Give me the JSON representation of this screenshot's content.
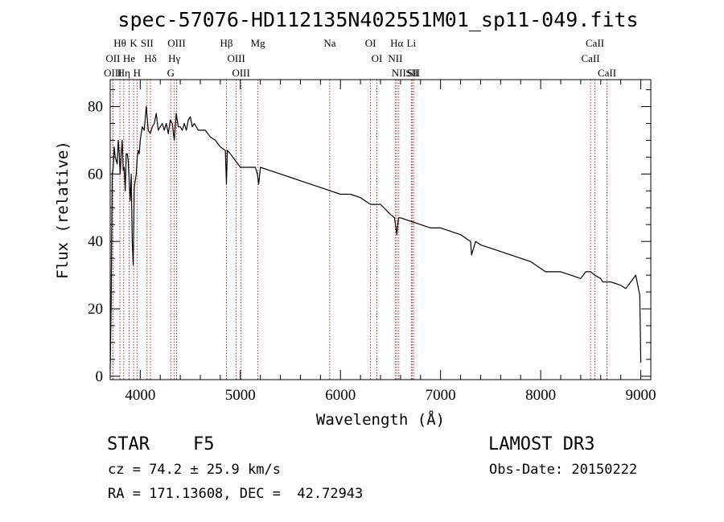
{
  "chart_data": {
    "type": "line",
    "title": "spec-57076-HD112135N402551M01_sp11-049.fits",
    "xlabel": "Wavelength (Å)",
    "ylabel": "Flux (relative)",
    "xlim": [
      3700,
      9100
    ],
    "ylim": [
      -1,
      88
    ],
    "xticks": [
      4000,
      5000,
      6000,
      7000,
      8000,
      9000
    ],
    "yticks": [
      0,
      20,
      40,
      60,
      80
    ],
    "series": [
      {
        "name": "flux",
        "x": [
          3700,
          3710,
          3720,
          3730,
          3740,
          3750,
          3760,
          3770,
          3780,
          3790,
          3800,
          3810,
          3820,
          3830,
          3840,
          3850,
          3860,
          3870,
          3880,
          3890,
          3900,
          3910,
          3920,
          3930,
          3940,
          3950,
          3960,
          3970,
          3980,
          3990,
          4000,
          4020,
          4040,
          4060,
          4080,
          4100,
          4120,
          4140,
          4160,
          4180,
          4200,
          4220,
          4240,
          4260,
          4280,
          4300,
          4320,
          4340,
          4360,
          4380,
          4400,
          4420,
          4440,
          4460,
          4480,
          4500,
          4520,
          4540,
          4560,
          4580,
          4600,
          4650,
          4700,
          4750,
          4800,
          4850,
          4861,
          4870,
          4900,
          4950,
          5000,
          5050,
          5100,
          5150,
          5170,
          5183,
          5200,
          5300,
          5400,
          5500,
          5600,
          5700,
          5800,
          5900,
          6000,
          6100,
          6200,
          6300,
          6400,
          6500,
          6540,
          6563,
          6580,
          6600,
          6700,
          6800,
          6900,
          7000,
          7100,
          7200,
          7250,
          7300,
          7310,
          7350,
          7400,
          7500,
          7600,
          7700,
          7800,
          7900,
          8000,
          8050,
          8100,
          8200,
          8300,
          8400,
          8450,
          8500,
          8540,
          8600,
          8620,
          8662,
          8700,
          8800,
          8850,
          8900,
          8950,
          8990,
          9000
        ],
        "values": [
          2,
          22,
          60,
          62,
          68,
          65,
          64,
          63,
          70,
          66,
          60,
          66,
          70,
          61,
          62,
          55,
          66,
          66,
          64,
          58,
          52,
          60,
          40,
          33,
          56,
          58,
          60,
          65,
          67,
          66,
          70,
          74,
          73,
          80,
          73,
          72,
          74,
          75,
          78,
          73,
          74,
          75,
          73,
          75,
          72,
          76,
          75,
          70,
          78,
          74,
          74,
          73,
          75,
          73,
          76,
          77,
          74,
          75,
          74,
          73,
          73,
          73,
          71,
          70,
          68,
          67,
          57,
          67,
          66,
          64,
          62,
          62,
          62,
          62,
          60,
          57,
          62,
          61,
          60,
          59,
          58,
          57,
          56,
          55,
          54,
          54,
          53,
          51,
          51,
          48,
          47,
          42,
          47,
          47,
          46,
          45,
          44,
          44,
          43,
          42,
          41,
          40,
          36,
          40,
          39,
          38,
          37,
          36,
          35,
          34,
          32,
          31,
          31,
          31,
          30,
          29,
          31,
          31,
          30,
          29,
          28,
          28,
          28,
          27,
          26,
          28,
          30,
          24,
          4
        ]
      }
    ],
    "spectral_lines": [
      {
        "label": "Hθ",
        "wavelength": 3797
      },
      {
        "label": "OII",
        "wavelength": 3727
      },
      {
        "label": "OIII",
        "wavelength": 3727
      },
      {
        "label": "He",
        "wavelength": 3889
      },
      {
        "label": "Hη",
        "wavelength": 3835
      },
      {
        "label": "K",
        "wavelength": 3934
      },
      {
        "label": "SII",
        "wavelength": 4068
      },
      {
        "label": "H",
        "wavelength": 3968
      },
      {
        "label": "Hδ",
        "wavelength": 4102
      },
      {
        "label": "OIII",
        "wavelength": 4363
      },
      {
        "label": "Hγ",
        "wavelength": 4340
      },
      {
        "label": "G",
        "wavelength": 4305
      },
      {
        "label": "Hβ",
        "wavelength": 4861
      },
      {
        "label": "OIII",
        "wavelength": 4959
      },
      {
        "label": "OIII",
        "wavelength": 5007
      },
      {
        "label": "Mg",
        "wavelength": 5175
      },
      {
        "label": "Na",
        "wavelength": 5893
      },
      {
        "label": "OI",
        "wavelength": 6300
      },
      {
        "label": "OI",
        "wavelength": 6364
      },
      {
        "label": "Hα",
        "wavelength": 6563
      },
      {
        "label": "NII",
        "wavelength": 6548
      },
      {
        "label": "NII",
        "wavelength": 6583
      },
      {
        "label": "SII",
        "wavelength": 6716
      },
      {
        "label": "Li",
        "wavelength": 6708
      },
      {
        "label": "SII",
        "wavelength": 6731
      },
      {
        "label": "CaII",
        "wavelength": 8542
      },
      {
        "label": "CaII",
        "wavelength": 8498
      },
      {
        "label": "CaII",
        "wavelength": 8662
      }
    ]
  },
  "info": {
    "object_class": "STAR",
    "subclass": "F5",
    "survey": "LAMOST DR3",
    "velocity": "cz = 74.2 ± 25.9 km/s",
    "obs_date": "Obs-Date: 20150222",
    "coords": "RA = 171.13608, DEC =  42.72943"
  }
}
